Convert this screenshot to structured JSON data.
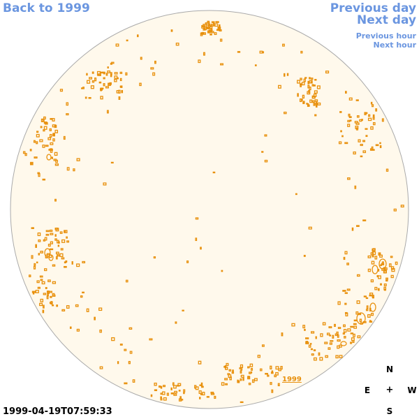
{
  "nav": {
    "back_label": "Back to 1999",
    "previous_day_label": "Previous day",
    "next_day_label": "Next day",
    "previous_hour_label": "Previous hour",
    "next_hour_label": "Next hour"
  },
  "compass": {
    "north": "N",
    "south": "S",
    "east": "E",
    "west": "W",
    "center": "+"
  },
  "timestamp": "1999-04-19T07:59:33",
  "year_link": "1999",
  "colors": {
    "link": "#6b96e0",
    "disk_fill": "#fff9ec",
    "disk_edge": "#aaaaaa",
    "feature": "#e8900c"
  }
}
